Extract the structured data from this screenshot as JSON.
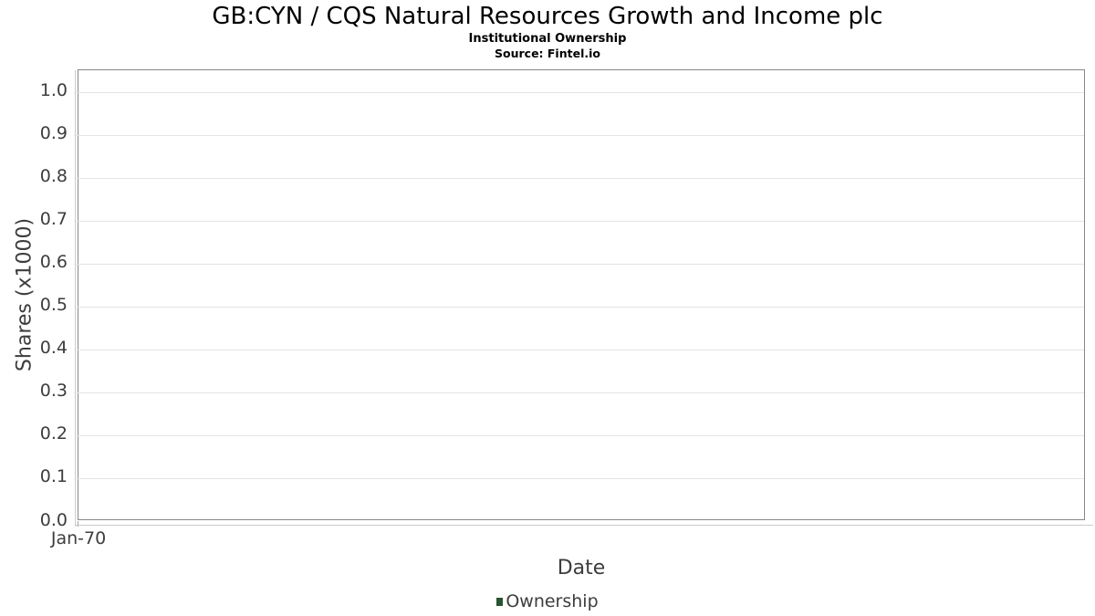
{
  "chart_data": {
    "type": "line",
    "title": "GB:CYN / CQS Natural Resources Growth and Income plc",
    "subtitle": "Institutional Ownership",
    "source": "Source: Fintel.io",
    "xlabel": "Date",
    "ylabel": "Shares (x1000)",
    "ylim": [
      0,
      1.05
    ],
    "grid": "horizontal",
    "legend_position": "bottom",
    "x_ticks": [
      {
        "label": "Jan-70",
        "fraction": 0
      }
    ],
    "y_ticks": [
      {
        "label": "1.0",
        "value": 1.0
      },
      {
        "label": "0.9",
        "value": 0.9
      },
      {
        "label": "0.8",
        "value": 0.8
      },
      {
        "label": "0.7",
        "value": 0.7
      },
      {
        "label": "0.6",
        "value": 0.6
      },
      {
        "label": "0.5",
        "value": 0.5
      },
      {
        "label": "0.4",
        "value": 0.4
      },
      {
        "label": "0.3",
        "value": 0.3
      },
      {
        "label": "0.2",
        "value": 0.2
      },
      {
        "label": "0.1",
        "value": 0.1
      },
      {
        "label": "0.0",
        "value": 0.0
      }
    ],
    "series": [
      {
        "name": "Ownership",
        "color": "#265530",
        "points": []
      }
    ],
    "colors": {
      "gridline": "#e4e4e4",
      "plot_border": "#878787",
      "axis_line": "#cccccc",
      "tick_text": "#3d3d3d",
      "title_text": "#000000",
      "legend_marker_green": "#265530"
    }
  }
}
